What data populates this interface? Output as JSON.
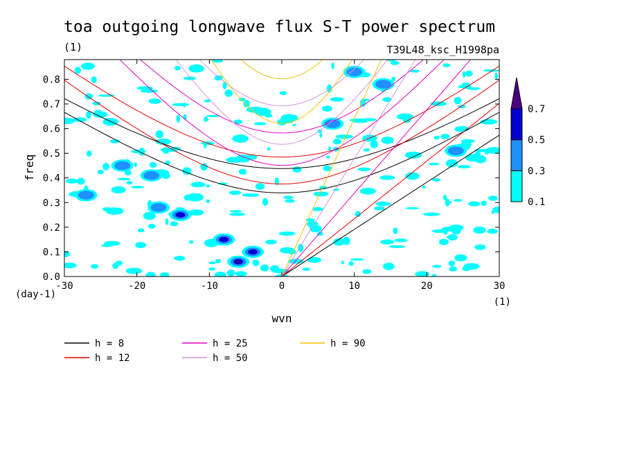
{
  "chart_data": {
    "type": "heatmap",
    "title": "toa outgoing longwave flux S-T power spectrum",
    "subtitle_left": "(1)",
    "subtitle_right": "T39L48_ksc_H1998pa",
    "xlabel": "wvn",
    "ylabel": "freq",
    "x_unit": "(1)",
    "y_unit": "(day-1)",
    "xlim": [
      -30,
      30
    ],
    "ylim": [
      0,
      0.88
    ],
    "x_ticks": [
      -30,
      -20,
      -10,
      0,
      10,
      20,
      30
    ],
    "x_tick_labels": [
      "-30",
      "-20",
      "-10",
      "0",
      "10",
      "20",
      "30"
    ],
    "y_ticks": [
      0.0,
      0.1,
      0.2,
      0.3,
      0.4,
      0.5,
      0.6,
      0.7,
      0.8
    ],
    "y_tick_labels": [
      "0.0",
      "0.1",
      "0.2",
      "0.3",
      "0.4",
      "0.5",
      "0.6",
      "0.7",
      "0.8"
    ],
    "colorbar": {
      "levels": [
        0.1,
        0.3,
        0.5,
        0.7
      ],
      "labels": [
        "0.1",
        "0.3",
        "0.5",
        "0.7"
      ],
      "colors": [
        "#00ffff",
        "#1e90ff",
        "#0000cd",
        "#4b0082"
      ]
    },
    "power_blobs": [
      {
        "x": -6,
        "y": 0.06,
        "level": 3
      },
      {
        "x": -8,
        "y": 0.15,
        "level": 2
      },
      {
        "x": -14,
        "y": 0.25,
        "level": 2
      },
      {
        "x": -22,
        "y": 0.45,
        "level": 1
      },
      {
        "x": 10,
        "y": 0.83,
        "level": 1
      },
      {
        "x": -18,
        "y": 0.41,
        "level": 1
      },
      {
        "x": 24,
        "y": 0.51,
        "level": 1
      },
      {
        "x": -4,
        "y": 0.1,
        "level": 2
      },
      {
        "x": -17,
        "y": 0.28,
        "level": 1
      },
      {
        "x": 14,
        "y": 0.78,
        "level": 1
      },
      {
        "x": 7,
        "y": 0.62,
        "level": 1
      },
      {
        "x": -27,
        "y": 0.33,
        "level": 1
      }
    ],
    "series": [
      {
        "name": "h =  8",
        "color": "#000000",
        "h": 8
      },
      {
        "name": "h = 12",
        "color": "#e00000",
        "h": 12
      },
      {
        "name": "h = 25",
        "color": "#e000c0",
        "h": 25
      },
      {
        "name": "h = 50",
        "color": "#d890e0",
        "h": 50
      },
      {
        "name": "h = 90",
        "color": "#f0c000",
        "h": 90
      }
    ],
    "legend_position": "bottom"
  }
}
